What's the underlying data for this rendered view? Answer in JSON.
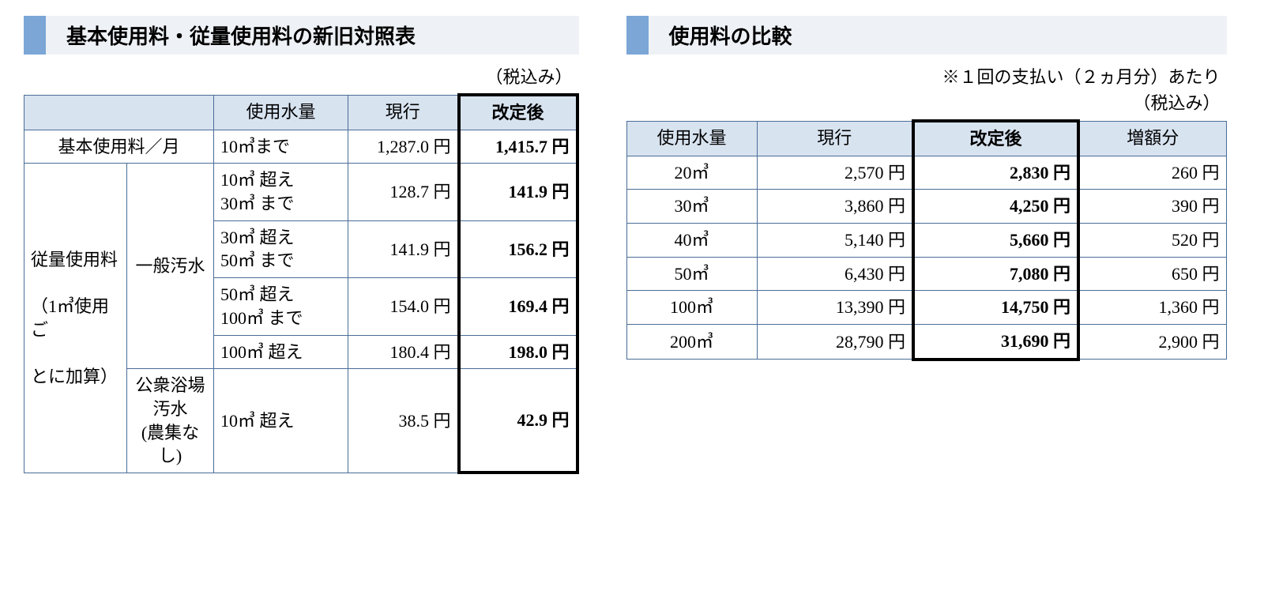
{
  "left": {
    "heading": "基本使用料・従量使用料の新旧対照表",
    "caption": "（税込み）",
    "header": {
      "blank": "",
      "usage": "使用水量",
      "current": "現行",
      "revised": "改定後"
    },
    "base_label": "基本使用料／月",
    "base_row": {
      "range": "10㎥まで",
      "current": "1,287.0 円",
      "revised": "1,415.7 円"
    },
    "side_label_line1": "従量使用料",
    "side_label_line2": "（1㎥使用ご",
    "side_label_line3": "とに加算）",
    "general_label": "一般汚水",
    "bath_label_line1": "公衆浴場",
    "bath_label_line2": "汚水",
    "bath_label_line3": "(農集なし)",
    "rows": [
      {
        "range1": "10㎥ 超え",
        "range2": "30㎥ まで",
        "current": "128.7 円",
        "revised": "141.9 円"
      },
      {
        "range1": "30㎥ 超え",
        "range2": "50㎥ まで",
        "current": "141.9 円",
        "revised": "156.2 円"
      },
      {
        "range1": "50㎥ 超え",
        "range2": "100㎥ まで",
        "current": "154.0 円",
        "revised": "169.4 円"
      },
      {
        "range1": "100㎥ 超え",
        "range2": "",
        "current": "180.4 円",
        "revised": "198.0 円"
      }
    ],
    "bath_row": {
      "range": "10㎥ 超え",
      "current": "38.5 円",
      "revised": "42.9 円"
    }
  },
  "right": {
    "heading": "使用料の比較",
    "caption_line1": "※１回の支払い（２ヵ月分）あたり",
    "caption_line2": "（税込み）",
    "header": {
      "usage": "使用水量",
      "current": "現行",
      "revised": "改定後",
      "diff": "増額分"
    },
    "rows": [
      {
        "usage": "20㎥",
        "current": "2,570 円",
        "revised": "2,830 円",
        "diff": "260 円"
      },
      {
        "usage": "30㎥",
        "current": "3,860 円",
        "revised": "4,250 円",
        "diff": "390 円"
      },
      {
        "usage": "40㎥",
        "current": "5,140 円",
        "revised": "5,660 円",
        "diff": "520 円"
      },
      {
        "usage": "50㎥",
        "current": "6,430 円",
        "revised": "7,080 円",
        "diff": "650 円"
      },
      {
        "usage": "100㎥",
        "current": "13,390 円",
        "revised": "14,750 円",
        "diff": "1,360 円"
      },
      {
        "usage": "200㎥",
        "current": "28,790 円",
        "revised": "31,690 円",
        "diff": "2,900 円"
      }
    ]
  },
  "style": {
    "accent_color": "#7ba6d6",
    "header_bg": "#d8e3f0",
    "border_color": "#4a6d97",
    "emphasis_border": "#000000",
    "bar_bg": "#eef2f6"
  }
}
